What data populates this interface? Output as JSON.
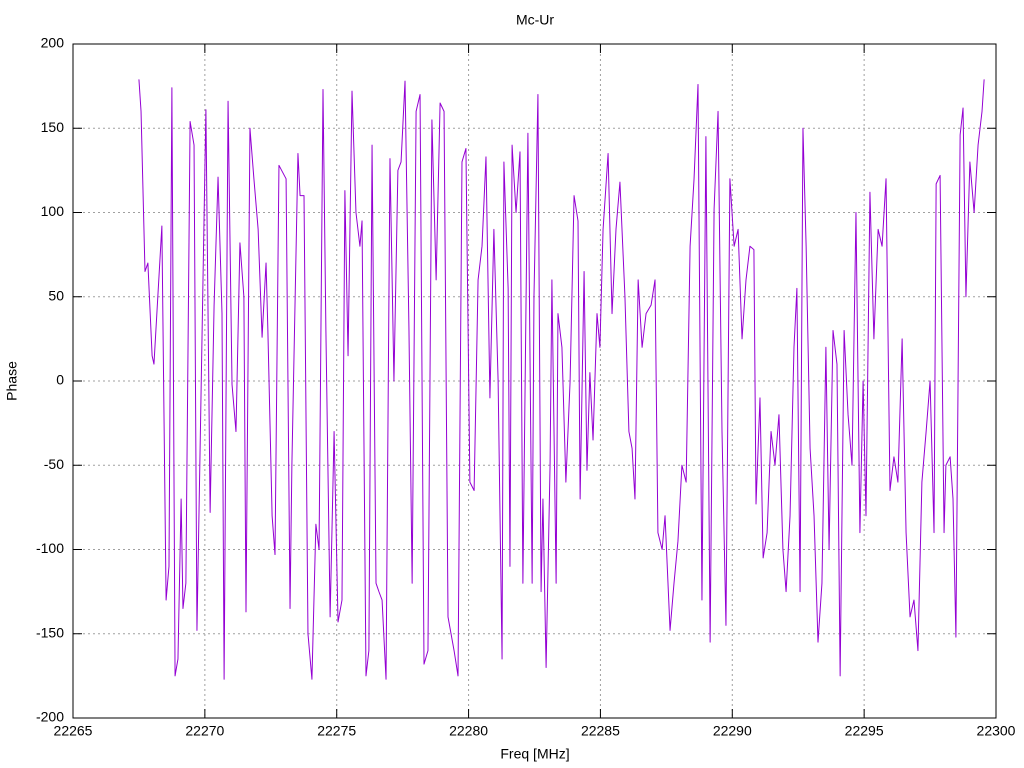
{
  "chart_data": {
    "type": "line",
    "title": "Mc-Ur",
    "x_label": "Freq [MHz]",
    "y_label": "Phase",
    "xlim": [
      22265,
      22300
    ],
    "xticks": [
      22265,
      22270,
      22275,
      22280,
      22285,
      22290,
      22295,
      22300
    ],
    "ylim": [
      -200,
      200
    ],
    "yticks": [
      -200,
      -150,
      -100,
      -50,
      0,
      50,
      100,
      150,
      200
    ],
    "grid": true,
    "x": [
      22267.5,
      22267.58,
      22267.73,
      22267.84,
      22268.0,
      22268.07,
      22268.37,
      22268.45,
      22268.53,
      22268.64,
      22268.75,
      22268.87,
      22268.98,
      22269.1,
      22269.17,
      22269.28,
      22269.44,
      22269.59,
      22269.7,
      22269.82,
      22270.04,
      22270.2,
      22270.35,
      22270.5,
      22270.65,
      22270.73,
      22270.88,
      22271.03,
      22271.18,
      22271.33,
      22271.48,
      22271.56,
      22271.71,
      22271.86,
      22272.02,
      22272.17,
      22272.32,
      22272.39,
      22272.55,
      22272.66,
      22272.81,
      22273.08,
      22273.23,
      22273.3,
      22273.53,
      22273.61,
      22273.76,
      22273.91,
      22274.06,
      22274.21,
      22274.33,
      22274.48,
      22274.59,
      22274.75,
      22274.9,
      22275.05,
      22275.2,
      22275.31,
      22275.43,
      22275.58,
      22275.73,
      22275.88,
      22275.96,
      22276.11,
      22276.22,
      22276.34,
      22276.49,
      22276.6,
      22276.72,
      22276.87,
      22277.02,
      22277.17,
      22277.32,
      22277.44,
      22277.59,
      22277.74,
      22277.86,
      22278.01,
      22278.16,
      22278.31,
      22278.46,
      22278.61,
      22278.77,
      22278.92,
      22279.07,
      22279.22,
      22279.45,
      22279.6,
      22279.75,
      22279.9,
      22280.05,
      22280.21,
      22280.36,
      22280.51,
      22280.66,
      22280.81,
      22280.96,
      22281.12,
      22281.27,
      22281.34,
      22281.5,
      22281.57,
      22281.65,
      22281.8,
      22281.95,
      22282.06,
      22282.25,
      22282.41,
      22282.48,
      22282.63,
      22282.75,
      22282.82,
      22282.94,
      22283.09,
      22283.16,
      22283.32,
      22283.39,
      22283.54,
      22283.69,
      22283.85,
      22284.0,
      22284.15,
      22284.23,
      22284.38,
      22284.49,
      22284.6,
      22284.72,
      22284.87,
      22284.98,
      22285.1,
      22285.29,
      22285.44,
      22285.59,
      22285.74,
      22285.93,
      22286.08,
      22286.2,
      22286.31,
      22286.43,
      22286.58,
      22286.73,
      22286.92,
      22287.07,
      22287.18,
      22287.34,
      22287.45,
      22287.64,
      22287.79,
      22287.94,
      22288.09,
      22288.25,
      22288.4,
      22288.55,
      22288.7,
      22288.85,
      22289.0,
      22289.16,
      22289.31,
      22289.46,
      22289.61,
      22289.76,
      22289.91,
      22290.07,
      22290.22,
      22290.37,
      22290.52,
      22290.67,
      22290.82,
      22290.9,
      22291.05,
      22291.17,
      22291.32,
      22291.47,
      22291.62,
      22291.77,
      22291.92,
      22292.04,
      22292.19,
      22292.34,
      22292.45,
      22292.57,
      22292.68,
      22292.8,
      22292.95,
      22293.1,
      22293.25,
      22293.4,
      22293.55,
      22293.67,
      22293.82,
      22293.97,
      22294.09,
      22294.24,
      22294.39,
      22294.54,
      22294.69,
      22294.84,
      22294.96,
      22295.07,
      22295.22,
      22295.37,
      22295.53,
      22295.68,
      22295.83,
      22295.98,
      22296.13,
      22296.28,
      22296.44,
      22296.59,
      22296.74,
      22296.89,
      22297.04,
      22297.19,
      22297.35,
      22297.5,
      22297.65,
      22297.73,
      22297.88,
      22298.03,
      22298.1,
      22298.26,
      22298.37,
      22298.48,
      22298.64,
      22298.75,
      22298.86,
      22299.01,
      22299.17,
      22299.32,
      22299.47,
      22299.55
    ],
    "series": [
      {
        "color": "#9400d3",
        "values": [
          179,
          160,
          65,
          70,
          15,
          10,
          92,
          -20,
          -130,
          -110,
          174,
          -175,
          -165,
          -70,
          -135,
          -120,
          154,
          140,
          -148,
          -40,
          161,
          -78,
          45,
          121,
          40,
          -177,
          166,
          -2,
          -30,
          82,
          50,
          -137,
          150,
          120,
          90,
          26,
          70,
          30,
          -80,
          -103,
          128,
          120,
          -135,
          -50,
          135,
          110,
          110,
          -150,
          -177,
          -85,
          -100,
          173,
          30,
          -140,
          -30,
          -143,
          -130,
          113,
          15,
          172,
          100,
          80,
          95,
          -175,
          -160,
          140,
          -120,
          -125,
          -130,
          -177,
          132,
          0,
          125,
          130,
          178,
          30,
          -120,
          160,
          170,
          -168,
          -160,
          155,
          60,
          165,
          160,
          -140,
          -160,
          -175,
          130,
          138,
          -60,
          -65,
          60,
          80,
          133,
          -10,
          90,
          0,
          -165,
          130,
          55,
          -110,
          140,
          100,
          136,
          -120,
          147,
          -120,
          50,
          170,
          -125,
          -70,
          -170,
          -50,
          60,
          -120,
          40,
          20,
          -60,
          0,
          110,
          95,
          -70,
          65,
          -53,
          5,
          -35,
          40,
          20,
          90,
          135,
          40,
          90,
          118,
          50,
          -30,
          -40,
          -70,
          60,
          20,
          40,
          45,
          60,
          -90,
          -100,
          -80,
          -148,
          -120,
          -95,
          -50,
          -60,
          80,
          120,
          176,
          -130,
          145,
          -155,
          102,
          160,
          -30,
          -145,
          120,
          80,
          90,
          25,
          60,
          80,
          78,
          -73,
          -10,
          -105,
          -90,
          -30,
          -50,
          -20,
          -100,
          -125,
          -80,
          20,
          55,
          -125,
          150,
          80,
          -40,
          -80,
          -155,
          -120,
          20,
          -100,
          30,
          10,
          -175,
          30,
          -20,
          -50,
          100,
          -90,
          0,
          -80,
          112,
          25,
          90,
          80,
          120,
          -65,
          -45,
          -60,
          25,
          -90,
          -140,
          -130,
          -160,
          -60,
          -30,
          0,
          -90,
          117,
          122,
          -90,
          -50,
          -45,
          -70,
          -152,
          146,
          162,
          50,
          130,
          100,
          140,
          160,
          179
        ]
      }
    ]
  }
}
